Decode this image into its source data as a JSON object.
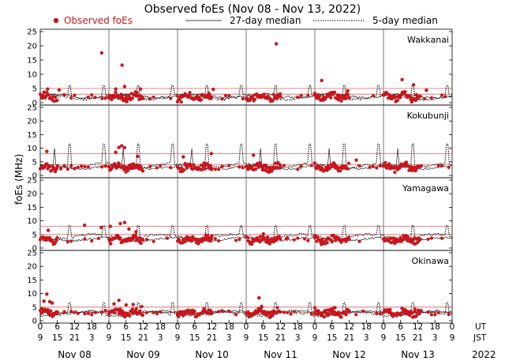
{
  "chart_data": {
    "type": "scatter",
    "title": "Observed foEs (Nov 08 - Nov 13, 2022)",
    "ylabel": "foEs (MHz)",
    "legend": {
      "observed": "Observed foEs",
      "median27": "27-day median",
      "median5": "5-day median"
    },
    "colors": {
      "observed": "#c8161d",
      "median27": "#000000",
      "median5": "#000000",
      "threshold": "#e06060"
    },
    "ylim": [
      0,
      25
    ],
    "yticks": [
      0,
      5,
      10,
      15,
      20,
      25
    ],
    "days": [
      "Nov 08",
      "Nov 09",
      "Nov 10",
      "Nov 11",
      "Nov 12",
      "Nov 13"
    ],
    "ut_ticks": [
      "0",
      "6",
      "12",
      "18",
      "0",
      "6",
      "12",
      "18",
      "0",
      "6",
      "12",
      "18",
      "0",
      "6",
      "12",
      "18",
      "0",
      "6",
      "12",
      "18",
      "0",
      "6",
      "12",
      "18",
      "0"
    ],
    "jst_ticks": [
      "9",
      "15",
      "21",
      "3",
      "9",
      "15",
      "21",
      "3",
      "9",
      "15",
      "21",
      "3",
      "9",
      "15",
      "21",
      "3",
      "9",
      "15",
      "21",
      "3",
      "9",
      "15",
      "21",
      "3",
      "9"
    ],
    "ut_label": "UT",
    "jst_label": "JST",
    "year": "2022",
    "x_range_hours": [
      0,
      144
    ],
    "stations": [
      {
        "name": "Wakkanai",
        "threshold_lines": [
          5,
          3
        ],
        "median27_level": 2.3,
        "median5_level": 2.0,
        "baseline": 2.0,
        "outliers": [
          [
            2.6,
            4.8
          ],
          [
            6.6,
            4.5
          ],
          [
            21.5,
            17.5
          ],
          [
            26.4,
            4.8
          ],
          [
            28.6,
            13.2
          ],
          [
            29.5,
            5.7
          ],
          [
            35.0,
            4.8
          ],
          [
            60.5,
            4.7
          ],
          [
            82.5,
            20.7
          ],
          [
            98.4,
            7.8
          ],
          [
            107.5,
            4.2
          ],
          [
            126.5,
            8.1
          ],
          [
            130.5,
            6.3
          ],
          [
            135.0,
            4.4
          ]
        ]
      },
      {
        "name": "Kokubunji",
        "threshold_lines": [
          8,
          4
        ],
        "median27_level": 3.0,
        "median5_level": 3.5,
        "baseline": 3.0,
        "outliers": [
          [
            2.3,
            8.8
          ],
          [
            26.4,
            8.5
          ],
          [
            27.5,
            10.3
          ],
          [
            28.5,
            10.9
          ],
          [
            29.5,
            10.2
          ],
          [
            34.0,
            7.0
          ],
          [
            50.0,
            6.8
          ],
          [
            59.8,
            8.0
          ],
          [
            74.5,
            7.4
          ],
          [
            76.5,
            3.5
          ],
          [
            77.8,
            2.0
          ],
          [
            80.0,
            1.2
          ],
          [
            110.5,
            5.6
          ],
          [
            128.0,
            4.8
          ]
        ]
      },
      {
        "name": "Yamagawa",
        "threshold_lines": [
          8,
          5
        ],
        "median27_level": 3.2,
        "median5_level": 4.2,
        "baseline": 3.0,
        "outliers": [
          [
            2.8,
            6.5
          ],
          [
            15.5,
            8.4
          ],
          [
            21.3,
            7.6
          ],
          [
            24.5,
            8.0
          ],
          [
            28.0,
            9.0
          ],
          [
            29.5,
            9.4
          ],
          [
            31.0,
            7.0
          ],
          [
            33.5,
            6.0
          ],
          [
            60.0,
            4.5
          ],
          [
            78.0,
            5.2
          ],
          [
            79.5,
            4.0
          ],
          [
            86.0,
            3.4
          ]
        ]
      },
      {
        "name": "Okinawa",
        "threshold_lines": [
          5,
          3
        ],
        "median27_level": 3.0,
        "median5_level": 2.6,
        "baseline": 3.0,
        "outliers": [
          [
            1.3,
            7.2
          ],
          [
            2.3,
            9.8
          ],
          [
            3.3,
            7.0
          ],
          [
            4.2,
            6.5
          ],
          [
            25.8,
            6.2
          ],
          [
            27.5,
            7.5
          ],
          [
            30.0,
            5.8
          ],
          [
            32.5,
            6.0
          ],
          [
            35.5,
            5.2
          ],
          [
            76.5,
            8.4
          ],
          [
            77.4,
            5.3
          ],
          [
            103.0,
            4.8
          ],
          [
            126.5,
            4.6
          ],
          [
            131.0,
            4.2
          ]
        ]
      }
    ]
  }
}
